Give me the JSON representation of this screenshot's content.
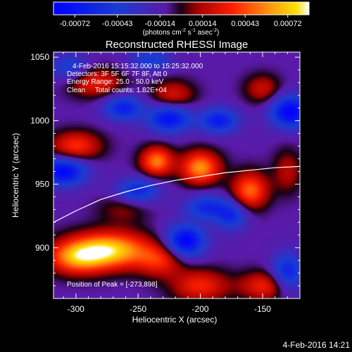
{
  "colorbar": {
    "ticks": [
      "-0.00072",
      "-0.00043",
      "-0.00014",
      "0.00014",
      "0.00043",
      "0.00072"
    ],
    "units_prefix": "(photons cm",
    "units_exp1": "-2",
    "units_mid1": " s",
    "units_exp2": "-1",
    "units_mid2": " asec",
    "units_exp3": "-2",
    "units_suffix": ")"
  },
  "plot": {
    "title": "Reconstructed RHESSI Image",
    "xlabel": "Heliocentric X (arcsec)",
    "ylabel": "Heliocentric Y (arcsec)",
    "xticks": [
      "-300",
      "-250",
      "-200",
      "-150"
    ],
    "yticks": [
      "900",
      "950",
      "1000",
      "1050"
    ]
  },
  "annotations": {
    "time_range": "4-Feb-2016 15:15:32.000 to 15:25:32.000",
    "detectors": "Detectors: 3F 5F 6F 7F 8F, Att 0",
    "energy": "Energy Range: 25.0 - 50.0 keV",
    "method_counts": "Clean     Total counts: 1.82E+04",
    "peak": "Position of Peak = [-273,898]"
  },
  "footer": {
    "timestamp": "4-Feb-2016 14:21"
  },
  "chart_data": {
    "type": "heatmap",
    "title": "Reconstructed RHESSI Image",
    "xlabel": "Heliocentric X (arcsec)",
    "ylabel": "Heliocentric Y (arcsec)",
    "xlim": [
      -318,
      -120
    ],
    "ylim": [
      860,
      1054
    ],
    "clim": [
      -0.00072,
      0.00072
    ],
    "peak_position": [
      -273,
      898
    ],
    "limb_curve": [
      [
        -318,
        920
      ],
      [
        -300,
        929
      ],
      [
        -280,
        938
      ],
      [
        -260,
        944
      ],
      [
        -240,
        949
      ],
      [
        -220,
        953
      ],
      [
        -200,
        956
      ],
      [
        -180,
        959
      ],
      [
        -160,
        961
      ],
      [
        -140,
        963
      ],
      [
        -120,
        964
      ]
    ],
    "sources": [
      {
        "x": -273,
        "y": 898,
        "amp": 0.00072,
        "sx": 22,
        "sy": 10
      },
      {
        "x": -300,
        "y": 892,
        "amp": 0.00048,
        "sx": 16,
        "sy": 9
      },
      {
        "x": -232,
        "y": 890,
        "amp": 0.00034,
        "sx": 13,
        "sy": 9
      },
      {
        "x": -200,
        "y": 870,
        "amp": 0.00036,
        "sx": 16,
        "sy": 9
      },
      {
        "x": -148,
        "y": 870,
        "amp": 0.00036,
        "sx": 14,
        "sy": 8
      },
      {
        "x": -200,
        "y": 963,
        "amp": 0.00058,
        "sx": 11,
        "sy": 9
      },
      {
        "x": -235,
        "y": 968,
        "amp": 0.00054,
        "sx": 9,
        "sy": 8
      },
      {
        "x": -160,
        "y": 945,
        "amp": 0.0005,
        "sx": 10,
        "sy": 10
      },
      {
        "x": -300,
        "y": 980,
        "amp": 0.0004,
        "sx": 14,
        "sy": 8
      },
      {
        "x": -285,
        "y": 1030,
        "amp": 0.00034,
        "sx": 15,
        "sy": 8
      },
      {
        "x": -222,
        "y": 1020,
        "amp": 0.0003,
        "sx": 12,
        "sy": 8
      },
      {
        "x": -150,
        "y": 1025,
        "amp": 0.00026,
        "sx": 10,
        "sy": 8
      },
      {
        "x": -130,
        "y": 960,
        "amp": 0.00022,
        "sx": 8,
        "sy": 12
      },
      {
        "x": -262,
        "y": 930,
        "amp": 0.00016,
        "sx": 14,
        "sy": 8
      },
      {
        "x": -310,
        "y": 960,
        "amp": -0.0006,
        "sx": 13,
        "sy": 8
      },
      {
        "x": -225,
        "y": 1002,
        "amp": -0.00055,
        "sx": 12,
        "sy": 8
      },
      {
        "x": -262,
        "y": 1010,
        "amp": -0.00046,
        "sx": 11,
        "sy": 7
      },
      {
        "x": -128,
        "y": 1007,
        "amp": -0.00062,
        "sx": 11,
        "sy": 9
      },
      {
        "x": -185,
        "y": 1000,
        "amp": -0.00048,
        "sx": 11,
        "sy": 7
      },
      {
        "x": -212,
        "y": 905,
        "amp": -0.00064,
        "sx": 11,
        "sy": 9
      },
      {
        "x": -195,
        "y": 932,
        "amp": -0.0004,
        "sx": 12,
        "sy": 7
      },
      {
        "x": -130,
        "y": 880,
        "amp": -0.00046,
        "sx": 9,
        "sy": 11
      },
      {
        "x": -305,
        "y": 1042,
        "amp": -0.0003,
        "sx": 11,
        "sy": 8
      },
      {
        "x": -250,
        "y": 945,
        "amp": -0.00042,
        "sx": 12,
        "sy": 7
      },
      {
        "x": -175,
        "y": 925,
        "amp": -0.00038,
        "sx": 9,
        "sy": 8
      },
      {
        "x": -240,
        "y": 1048,
        "amp": -0.0003,
        "sx": 12,
        "sy": 6
      }
    ]
  }
}
